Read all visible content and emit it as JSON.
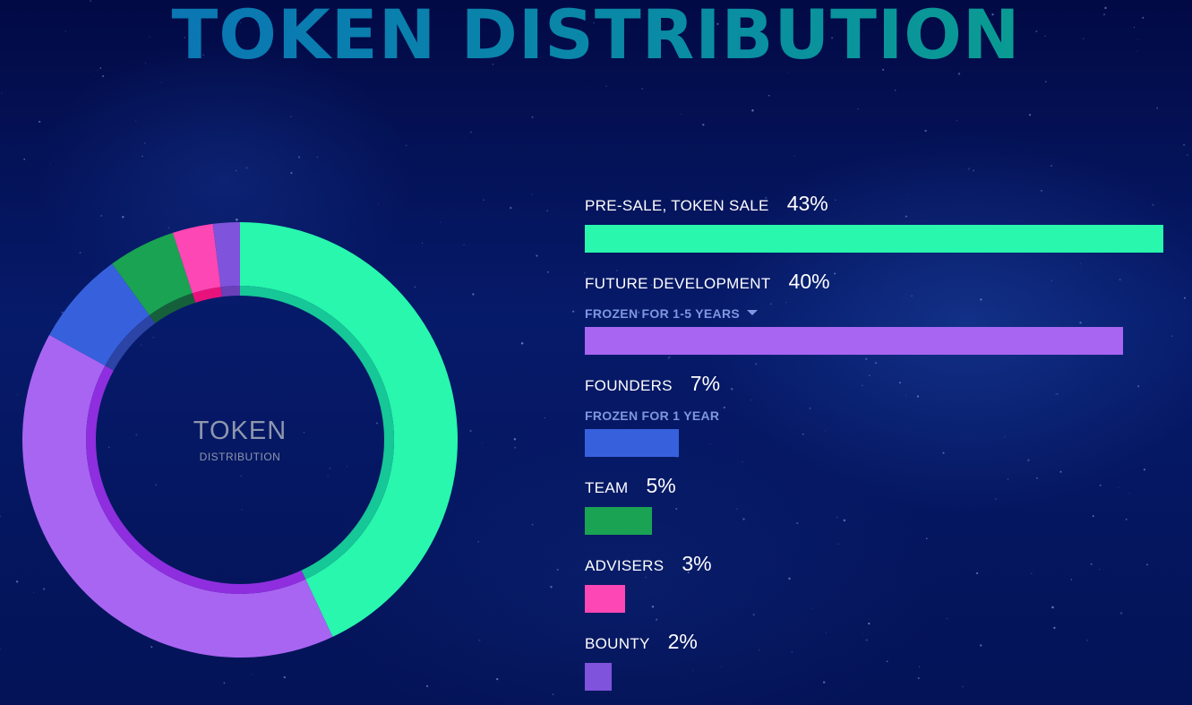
{
  "title": "TOKEN DISTRIBUTION",
  "center": {
    "main": "TOKEN",
    "sub": "DISTRIBUTION"
  },
  "chart_data": {
    "type": "pie",
    "title": "TOKEN DISTRIBUTION",
    "donut": true,
    "legend_position": "right",
    "categories": [
      "PRE-SALE, TOKEN SALE",
      "FUTURE DEVELOPMENT",
      "FOUNDERS",
      "TEAM",
      "ADVISERS",
      "BOUNTY"
    ],
    "values": [
      43,
      40,
      7,
      5,
      3,
      2
    ],
    "labels": [
      "43%",
      "40%",
      "7%",
      "5%",
      "3%",
      "2%"
    ],
    "notes": [
      "",
      "FROZEN FOR 1-5 YEARS",
      "FROZEN FOR 1 YEAR",
      "",
      "",
      ""
    ],
    "colors": [
      "#28f7ad",
      "#a865f2",
      "#3761dc",
      "#1aa352",
      "#fd47b4",
      "#7f53db"
    ],
    "inner_colors": [
      "#16c797",
      "#8e2ede",
      "#2b44a6",
      "#15603a",
      "#e8127d",
      "#6a3fb8"
    ],
    "bar_scale_max": 43
  }
}
